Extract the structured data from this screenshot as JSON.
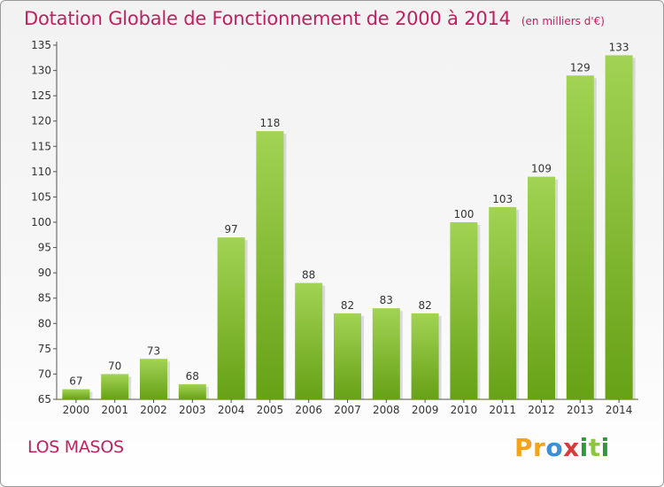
{
  "title": "Dotation Globale de Fonctionnement de 2000 à 2014",
  "unit_note": "(en milliers d'€)",
  "commune_name": "LOS MASOS",
  "logo": {
    "text": "Proxiti",
    "parts": [
      "P",
      "r",
      "o",
      "x",
      "i",
      "t",
      "i"
    ]
  },
  "colors": {
    "title": "#c21f5f",
    "bar_light": "#9ccf4c",
    "bar_dark": "#69a51a"
  },
  "chart_data": {
    "type": "bar",
    "title": "Dotation Globale de Fonctionnement de 2000 à 2014",
    "xlabel": "",
    "ylabel": "",
    "categories": [
      "2000",
      "2001",
      "2002",
      "2003",
      "2004",
      "2005",
      "2006",
      "2007",
      "2008",
      "2009",
      "2010",
      "2011",
      "2012",
      "2013",
      "2014"
    ],
    "values": [
      67,
      70,
      73,
      68,
      97,
      118,
      88,
      82,
      83,
      82,
      100,
      103,
      109,
      129,
      133
    ],
    "ylim": [
      65,
      135
    ],
    "yticks": [
      65,
      70,
      75,
      80,
      85,
      90,
      95,
      100,
      105,
      110,
      115,
      120,
      125,
      130,
      135
    ],
    "grid": false,
    "legend": "none"
  }
}
